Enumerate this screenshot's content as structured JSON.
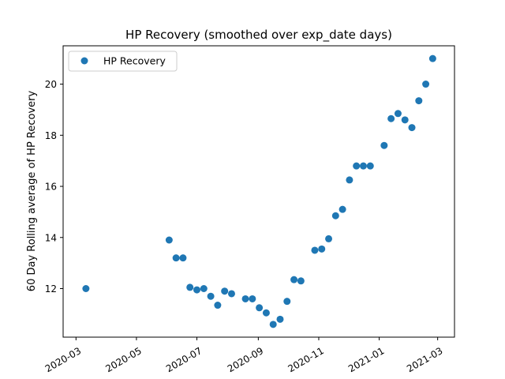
{
  "chart_data": {
    "type": "scatter",
    "title": "HP Recovery (smoothed over exp_date days)",
    "xlabel": "",
    "ylabel": "60 Day Rolling average of HP Recovery",
    "legend": {
      "placement": "top-left",
      "entries": [
        "HP Recovery"
      ]
    },
    "grid": false,
    "xlim": [
      "2020-02-17",
      "2021-03-18"
    ],
    "ylim": [
      10.1,
      21.5
    ],
    "x_ticks": [
      "2020-03",
      "2020-05",
      "2020-07",
      "2020-09",
      "2020-11",
      "2021-01",
      "2021-03"
    ],
    "y_ticks": [
      12,
      14,
      16,
      18,
      20
    ],
    "series": [
      {
        "name": "HP Recovery",
        "color": "#1f77b4",
        "points": [
          {
            "x": "2020-03-11",
            "y": 12.0
          },
          {
            "x": "2020-06-03",
            "y": 13.9
          },
          {
            "x": "2020-06-10",
            "y": 13.2
          },
          {
            "x": "2020-06-17",
            "y": 13.2
          },
          {
            "x": "2020-06-24",
            "y": 12.05
          },
          {
            "x": "2020-07-01",
            "y": 11.95
          },
          {
            "x": "2020-07-08",
            "y": 12.0
          },
          {
            "x": "2020-07-15",
            "y": 11.7
          },
          {
            "x": "2020-07-22",
            "y": 11.35
          },
          {
            "x": "2020-07-29",
            "y": 11.9
          },
          {
            "x": "2020-08-05",
            "y": 11.8
          },
          {
            "x": "2020-08-19",
            "y": 11.6
          },
          {
            "x": "2020-08-26",
            "y": 11.6
          },
          {
            "x": "2020-09-02",
            "y": 11.25
          },
          {
            "x": "2020-09-09",
            "y": 11.05
          },
          {
            "x": "2020-09-16",
            "y": 10.6
          },
          {
            "x": "2020-09-23",
            "y": 10.8
          },
          {
            "x": "2020-09-30",
            "y": 11.5
          },
          {
            "x": "2020-10-07",
            "y": 12.35
          },
          {
            "x": "2020-10-14",
            "y": 12.3
          },
          {
            "x": "2020-10-28",
            "y": 13.5
          },
          {
            "x": "2020-11-04",
            "y": 13.55
          },
          {
            "x": "2020-11-11",
            "y": 13.95
          },
          {
            "x": "2020-11-18",
            "y": 14.85
          },
          {
            "x": "2020-11-25",
            "y": 15.1
          },
          {
            "x": "2020-12-02",
            "y": 16.25
          },
          {
            "x": "2020-12-09",
            "y": 16.8
          },
          {
            "x": "2020-12-16",
            "y": 16.8
          },
          {
            "x": "2020-12-23",
            "y": 16.8
          },
          {
            "x": "2021-01-06",
            "y": 17.6
          },
          {
            "x": "2021-01-13",
            "y": 18.65
          },
          {
            "x": "2021-01-20",
            "y": 18.85
          },
          {
            "x": "2021-01-27",
            "y": 18.6
          },
          {
            "x": "2021-02-03",
            "y": 18.3
          },
          {
            "x": "2021-02-10",
            "y": 19.35
          },
          {
            "x": "2021-02-17",
            "y": 20.0
          },
          {
            "x": "2021-02-24",
            "y": 21.0
          }
        ]
      }
    ]
  }
}
